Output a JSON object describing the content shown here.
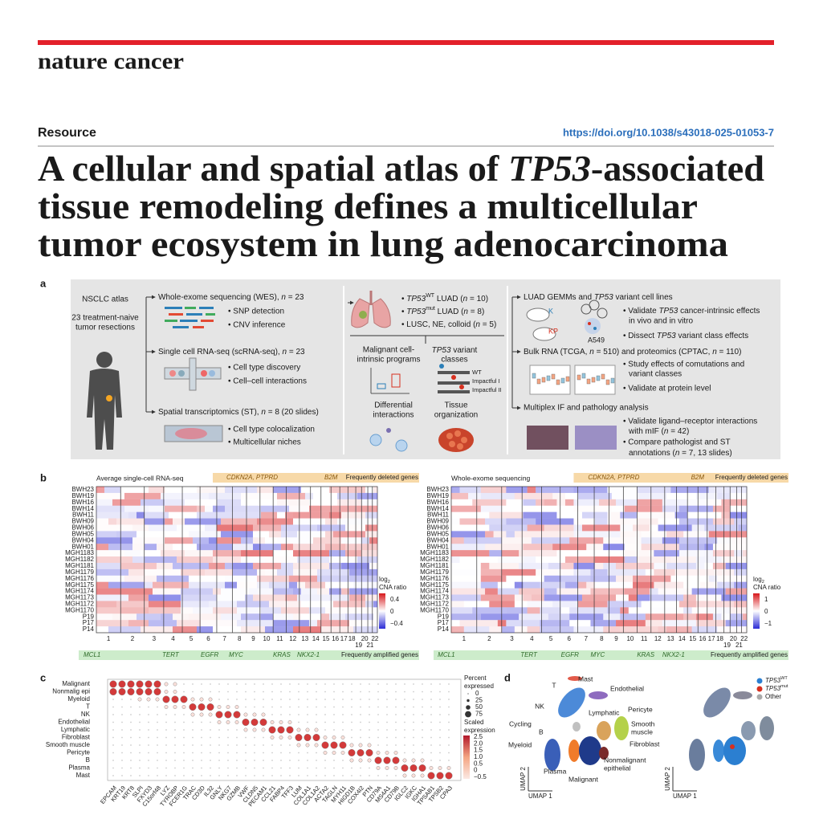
{
  "header": {
    "journal": "nature cancer",
    "article_type": "Resource",
    "doi": "https://doi.org/10.1038/s43018-025-01053-7"
  },
  "title": {
    "lines": [
      [
        "A cellular and spatial atlas of ",
        {
          "italic": "TP53"
        },
        "-associated"
      ],
      [
        "tissue remodeling defines a multicellular"
      ],
      [
        "tumor ecosystem in lung adenocarcinoma"
      ]
    ]
  },
  "figure": {
    "panel_a": {
      "label": "a",
      "atlas_title": "NSCLC atlas",
      "atlas_lines": [
        "23 treatment-naive",
        "tumor resections"
      ],
      "wes_title": [
        "Whole-exome sequencing (WES), ",
        {
          "italic": "n"
        },
        " = 23"
      ],
      "wes_bullets": [
        "• SNP detection",
        "• CNV inference"
      ],
      "scrna_title": [
        "Single cell RNA-seq (scRNA-seq), ",
        {
          "italic": "n"
        },
        " = 23"
      ],
      "scrna_bullets": [
        "• Cell type discovery",
        "• Cell–cell interactions"
      ],
      "st_title": [
        "Spatial transcriptomics (ST), ",
        {
          "italic": "n"
        },
        " = 8 (20 slides)"
      ],
      "st_bullets": [
        "• Cell type colocalization",
        "• Multicellular niches"
      ],
      "cohort": [
        [
          "• ",
          {
            "italic": "TP53"
          },
          {
            "sup": "WT"
          },
          " LUAD (",
          {
            "italic": "n"
          },
          " = 10)"
        ],
        [
          "• ",
          {
            "italic": "TP53"
          },
          {
            "sup": "mut"
          },
          " LUAD (",
          {
            "italic": "n"
          },
          " = 8)"
        ],
        [
          "• LUSC, NE, colloid (",
          {
            "italic": "n"
          },
          " = 5)"
        ]
      ],
      "programs": [
        "Malignant cell-",
        "intrinsic programs"
      ],
      "variant_classes": [
        [
          {
            "italic": "TP53"
          },
          " variant"
        ],
        "classes"
      ],
      "variant_legend": [
        "WT",
        "Impactful I",
        "Impactful II"
      ],
      "interactions": [
        "Differential",
        "interactions"
      ],
      "organization": [
        "Tissue",
        "organization"
      ],
      "gemm_title": [
        "LUAD GEMMs and ",
        {
          "italic": "TP53"
        },
        " variant cell lines"
      ],
      "gemm_icons": [
        "K",
        "KP",
        "A549"
      ],
      "gemm_bullets": [
        [
          "• Validate ",
          {
            "italic": "TP53"
          },
          " cancer-intrinsic effects"
        ],
        "in vivo and in vitro",
        [
          "• Dissect ",
          {
            "italic": "TP53"
          },
          " variant class effects"
        ]
      ],
      "bulk_title": [
        "Bulk RNA (TCGA, ",
        {
          "italic": "n"
        },
        " = 510) and proteomics (CPTAC, ",
        {
          "italic": "n"
        },
        " = 110)"
      ],
      "bulk_bullets": [
        "• Study effects of comutations and",
        "variant classes",
        "• Validate at protein level"
      ],
      "mif_title": "Multiplex IF and pathology analysis",
      "mif_bullets": [
        "• Validate ligand–receptor interactions",
        [
          "with mIF (",
          {
            "italic": "n"
          },
          " = 42)"
        ],
        "• Compare pathologist and ST",
        [
          "annotations (",
          {
            "italic": "n"
          },
          " = 7, 13 slides)"
        ]
      ]
    },
    "panel_b": {
      "label": "b",
      "samples": [
        "BWH23",
        "BWH19",
        "BWH16",
        "BWH14",
        "BWH11",
        "BWH09",
        "BWH06",
        "BWH05",
        "BWH04",
        "BWH01",
        "MGH1183",
        "MGH1182",
        "MGH1181",
        "MGH1179",
        "MGH1176",
        "MGH1175",
        "MGH1174",
        "MGH1173",
        "MGH1172",
        "MGH1170",
        "P19",
        "P17",
        "P14"
      ],
      "left_title": "Average single-cell RNA-seq",
      "right_title": "Whole-exome sequencing",
      "deleted_genes": [
        {
          "italic": "CDKN2A, PTPRD"
        },
        {
          "italic": "B2M"
        }
      ],
      "deleted_label": "Frequently deleted genes",
      "amplified_genes": [
        {
          "italic": "MCL1"
        },
        {
          "italic": "TERT"
        },
        {
          "italic": "EGFR"
        },
        {
          "italic": "MYC"
        },
        {
          "italic": "KRAS"
        },
        {
          "italic": "NKX2-1"
        }
      ],
      "amplified_label": "Frequently amplified genes",
      "chromosomes": [
        "1",
        "2",
        "3",
        "4",
        "5",
        "6",
        "7",
        "8",
        "9",
        "10",
        "11",
        "12",
        "13",
        "14",
        "15",
        "16",
        "17",
        "18",
        "19",
        "20",
        "21",
        "22"
      ],
      "legend_title": [
        [
          "log",
          {
            "sub": "2"
          }
        ],
        "CNA ratio"
      ],
      "left_legend_ticks": [
        "0.4",
        "0",
        "−0.4"
      ],
      "right_legend_ticks": [
        "1",
        "0",
        "−1"
      ]
    },
    "panel_c": {
      "label": "c",
      "cell_types": [
        "Malignant",
        "Nonmalig epi",
        "Myeloid",
        "T",
        "NK",
        "Endothelial",
        "Lymphatic",
        "Fibroblast",
        "Smooth muscle",
        "Pericyte",
        "B",
        "Plasma",
        "Mast"
      ],
      "genes": [
        "EPCAM",
        "KRT19",
        "KRT8",
        "SLPI",
        "FXYD3",
        "C15orf48",
        "LYZ",
        "TYROBP",
        "FCER1G",
        "TRAC",
        "CD3D",
        "IL32",
        "GNLY",
        "NKG7",
        "GZMB",
        "VWF",
        "CLDN5",
        "PECAM1",
        "CCL21",
        "FABP4",
        "TFF3",
        "LUM",
        "COL1A1",
        "COL1A2",
        "ACTA2",
        "TAGLN",
        "MYH11",
        "HIGD1B",
        "COX4I2",
        "PTN",
        "CD79A",
        "MS4A1",
        "CD79B",
        "IGLC2",
        "IGKC",
        "IGHA1",
        "TPSAB1",
        "TPSB2",
        "CPA3"
      ],
      "size_legend_title": [
        "Percent",
        "expressed"
      ],
      "size_ticks": [
        "0",
        "25",
        "50",
        "75"
      ],
      "color_legend_title": [
        "Scaled",
        "expression"
      ],
      "color_ticks": [
        "2.5",
        "2.0",
        "1.5",
        "1.0",
        "0.5",
        "0",
        "−0.5"
      ]
    },
    "panel_d": {
      "label": "d",
      "clusters": [
        "Mast",
        "Endothelial",
        "T",
        "NK",
        "Lymphatic",
        "Pericyte",
        "Smooth",
        "muscle",
        "Cycling",
        "B",
        "Fibroblast",
        "Myeloid",
        "Nonmalignant",
        "epithelial",
        "Plasma",
        "Malignant"
      ],
      "axis_y": "UMAP 2",
      "axis_x": "UMAP 1",
      "legend": [
        [
          {
            "italic": "TP53"
          },
          {
            "sup": "WT"
          }
        ],
        [
          {
            "italic": "TP53"
          },
          {
            "sup": "mut"
          }
        ],
        "Other"
      ]
    }
  }
}
